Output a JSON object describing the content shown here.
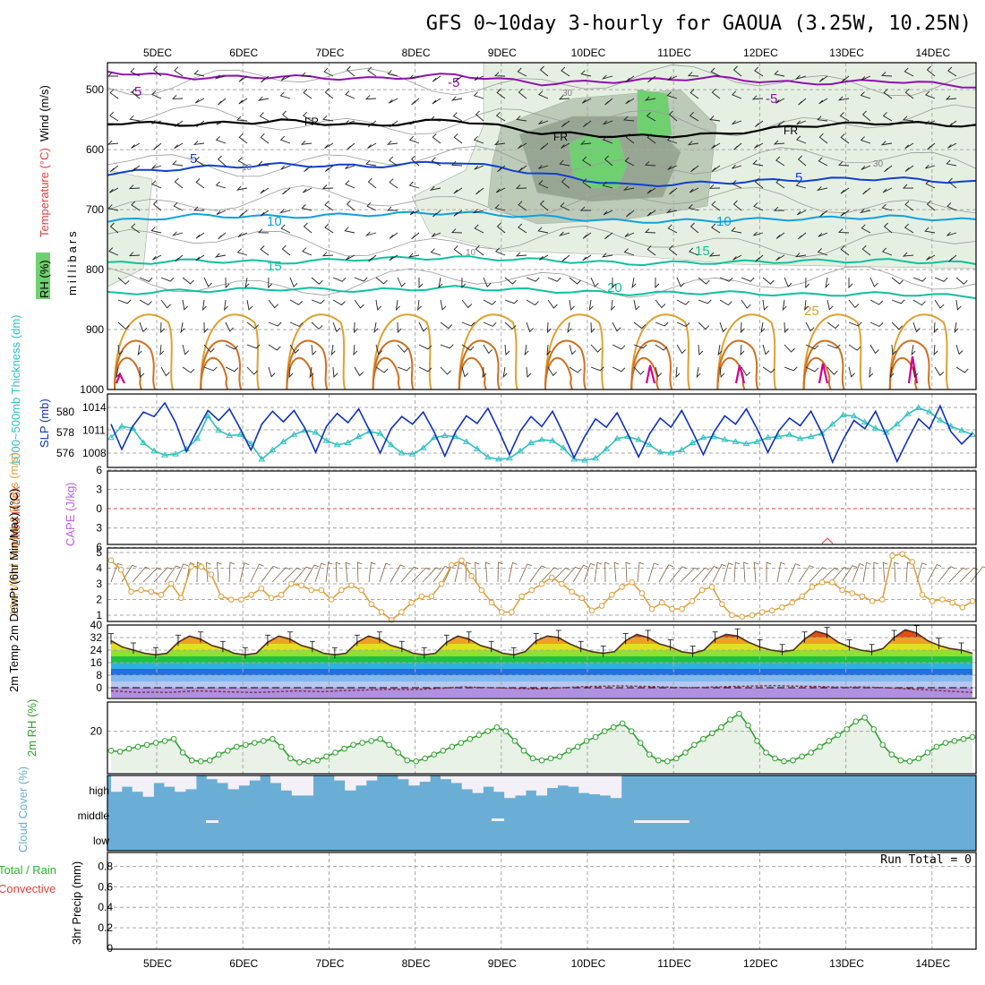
{
  "title": "GFS 0~10day 3-hourly for GAOUA (3.25W, 10.25N)",
  "colors": {
    "rh_light": "#e6f0e2",
    "rh_mid": "#bccab8",
    "rh_dark": "#97a693",
    "rh_green": "#6fd070",
    "purple": "#9010b0",
    "blue": "#1040d0",
    "lightblue": "#10a0e0",
    "teal": "#10c0a0",
    "orange": "#e0a030",
    "darkorange": "#d07020",
    "magenta": "#d00090",
    "slp": "#1030c0",
    "thick": "#30c0c0",
    "li": "#e04040",
    "cape": "#c060e0",
    "wind_speed": "#e0a040",
    "barb": "#806040",
    "temp": "#503020",
    "rh2m": "#30a030",
    "cloud": "#6aaed6",
    "cloud_gap": "#f4f0f8"
  },
  "chart_data": [
    {
      "panel": "upper-air",
      "type": "heatmap",
      "x_dates": [
        "5DEC",
        "6DEC",
        "7DEC",
        "8DEC",
        "9DEC",
        "10DEC",
        "11DEC",
        "12DEC",
        "13DEC",
        "14DEC"
      ],
      "y_ticks": [
        500,
        600,
        700,
        800,
        900,
        1000
      ],
      "ylabel": "millibars",
      "side_labels": [
        "RH (%)",
        "Temperature (°C)",
        "Wind (m/s)"
      ],
      "rh_legend": [
        "30",
        "10",
        "30",
        "10"
      ],
      "isotherm_labels": [
        "-5",
        "-5",
        "-5",
        "FR",
        "FR",
        "FR",
        "5",
        "5",
        "10",
        "10",
        "15",
        "15",
        "20",
        "25"
      ],
      "isotherms": [
        {
          "label": "-5",
          "p": [
            470,
            480,
            478,
            482,
            475,
            490,
            485,
            480,
            490,
            485,
            495
          ]
        },
        {
          "label": "FR",
          "p": [
            555,
            558,
            552,
            560,
            550,
            572,
            578,
            575,
            560,
            555,
            560
          ]
        },
        {
          "label": "5",
          "p": [
            640,
            630,
            625,
            628,
            620,
            640,
            660,
            655,
            650,
            648,
            655
          ]
        },
        {
          "label": "10",
          "p": [
            720,
            710,
            712,
            708,
            705,
            712,
            720,
            718,
            715,
            712,
            718
          ]
        },
        {
          "label": "15",
          "p": [
            790,
            785,
            788,
            782,
            780,
            784,
            790,
            788,
            786,
            785,
            790
          ]
        },
        {
          "label": "20",
          "p": [
            840,
            835,
            832,
            835,
            830,
            835,
            840,
            838,
            842,
            840,
            845
          ]
        }
      ]
    },
    {
      "panel": "slp-thickness",
      "type": "line",
      "ylabel_left": "1000~500mb Thickness (dm)",
      "ylabel_right": "SLP (mb)",
      "left_ticks": [
        576,
        578,
        580
      ],
      "right_ticks": [
        1008,
        1011,
        1014
      ],
      "series": [
        {
          "name": "SLP (mb)",
          "values": [
            1011.8,
            1008.5,
            1011.5,
            1013.4,
            1012.8,
            1014.6,
            1012,
            1008.2,
            1011,
            1013.6,
            1012.3,
            1013.8,
            1011.2,
            1008.4,
            1011.8,
            1013.5,
            1012.1,
            1013.6,
            1011.3,
            1008.1,
            1011.5,
            1013.2,
            1012,
            1013.8,
            1011,
            1008,
            1011.2,
            1012.8,
            1011.8,
            1013.4,
            1010.8,
            1007.6,
            1010.8,
            1012.9,
            1011.9,
            1013.9,
            1011,
            1007.8,
            1010.9,
            1012.8,
            1011.5,
            1013.5,
            1010.6,
            1007.4,
            1010.2,
            1012.5,
            1011.4,
            1013.3,
            1010.5,
            1007.5,
            1010.5,
            1012.6,
            1011.4,
            1013.6,
            1010.8,
            1007.8,
            1010.8,
            1012.9,
            1011.8,
            1013.8,
            1011.2,
            1008.1,
            1010.9,
            1012.6,
            1011.6,
            1013.5,
            1010.7,
            1006.8,
            1009.8,
            1012.3,
            1011.2,
            1013.5,
            1010.3,
            1006.9,
            1009.8,
            1012.5,
            1011.2,
            1014.2,
            1010.8,
            1009.2,
            1010.6
          ]
        },
        {
          "name": "Thickness (dm)",
          "values": [
            577.5,
            578.6,
            578.4,
            577,
            576.2,
            575.8,
            575.9,
            576.4,
            577.4,
            579.6,
            578.2,
            577.7,
            577.8,
            576.9,
            575.4,
            576.3,
            577.1,
            577.8,
            578.2,
            578,
            577.2,
            576.8,
            577,
            577.6,
            578.1,
            577.9,
            576.8,
            576,
            575.9,
            576.5,
            577.5,
            577.7,
            577.6,
            577.1,
            576.4,
            575.6,
            575.4,
            575.5,
            576.2,
            577,
            577.3,
            577.2,
            576.5,
            575.4,
            575.3,
            575.5,
            576.4,
            577.4,
            577.6,
            577.3,
            576.8,
            576.1,
            576,
            576.3,
            577,
            577.5,
            577.6,
            577.3,
            577.1,
            576.9,
            577.1,
            577.5,
            577.6,
            577.8,
            577.4,
            577.6,
            577.9,
            578.8,
            579.7,
            579.6,
            579,
            578.4,
            578,
            578.8,
            579.8,
            580.4,
            580,
            579.2,
            578.6,
            578.2,
            577.8
          ]
        }
      ]
    },
    {
      "panel": "lifted-index-cape",
      "type": "line",
      "ylabel_left": "Lifted Index",
      "ylabel_right": "CAPE (J/kg)",
      "ticks": [
        -6,
        -3,
        0,
        3,
        6
      ],
      "tick_labels": [
        "-6",
        "-3",
        "0",
        "3",
        "6"
      ],
      "lifted_index_reference": 0
    },
    {
      "panel": "wind-10m",
      "type": "line",
      "ylabel": "10m Wind Speed & Barbs (m/s)",
      "ticks": [
        1,
        2,
        3,
        4,
        5
      ],
      "series": [
        {
          "name": "Speed",
          "values": [
            4.5,
            3.9,
            2.5,
            2.6,
            2.5,
            2.3,
            3,
            2.1,
            4.1,
            4.1,
            3.6,
            2.2,
            2,
            2,
            2.3,
            2.7,
            2.1,
            2.3,
            3,
            2.9,
            2.6,
            2.6,
            2,
            2.6,
            2.9,
            2.6,
            1.7,
            1.2,
            0.7,
            1.2,
            1.8,
            2.2,
            2.2,
            3,
            4.2,
            4.5,
            3.5,
            2.6,
            1.8,
            1.2,
            1.2,
            2.2,
            2.6,
            3,
            3.4,
            3,
            2.5,
            2.1,
            1.3,
            1.6,
            2.3,
            2.8,
            3.1,
            2.4,
            1.4,
            1.8,
            1.4,
            1.4,
            1.9,
            2.6,
            2.8,
            1.7,
            1,
            0.9,
            1,
            1.2,
            1.3,
            1.5,
            1.8,
            2.2,
            2.8,
            3.1,
            3.1,
            2.6,
            2.4,
            2.2,
            1.9,
            2,
            4.8,
            4.9,
            4.4,
            2.3,
            1.9,
            2,
            1.8,
            1.5,
            1.9
          ]
        }
      ]
    },
    {
      "panel": "temp-2m",
      "type": "area",
      "ylabel": "2m Temp 2m DewPt (6hr Min/Max) (°C)",
      "ticks": [
        0,
        8,
        16,
        24,
        32,
        40
      ],
      "series": [
        {
          "name": "Temp",
          "values": [
            30,
            26,
            24,
            22,
            21,
            22,
            29,
            33,
            31,
            27,
            25,
            22,
            21,
            22,
            29,
            33,
            31,
            27,
            25,
            22,
            21,
            22,
            29,
            33,
            31,
            27,
            25,
            22,
            21,
            22,
            29,
            33,
            31,
            27,
            25,
            22,
            21,
            23,
            30,
            33,
            32,
            28,
            25,
            23,
            22,
            23,
            30,
            34,
            32,
            28,
            26,
            23,
            22,
            24,
            31,
            34,
            33,
            29,
            26,
            24,
            23,
            24,
            31,
            36,
            34,
            29,
            26,
            24,
            23,
            25,
            32,
            37,
            35,
            30,
            27,
            25,
            24,
            22
          ]
        },
        {
          "name": "DewPt",
          "values": [
            -2,
            -2.5,
            -3,
            -2.8,
            -3,
            -2.5,
            -2,
            -2.2,
            -2.6,
            -2.8,
            -3,
            -2.8,
            -2.5,
            -2,
            -2.2,
            -2.5,
            -2,
            -1.8,
            -1.5,
            -1.2,
            -1,
            -1.2,
            -1,
            -0.5,
            0,
            0.5,
            0.2,
            0,
            -0.2,
            -0.5,
            -0.8,
            -0.5,
            0,
            0.5,
            0.8,
            1,
            1.2,
            1,
            0.8,
            0.5,
            0.2,
            0,
            0.3,
            0.5,
            0.8,
            1,
            1.2,
            1.3,
            1.1,
            0.9,
            0.8,
            0.5,
            0.3,
            0.5,
            0.2,
            0,
            -0.5,
            -1,
            -1.5,
            -2,
            -2.5,
            -3
          ]
        }
      ]
    },
    {
      "panel": "rh-2m",
      "type": "area",
      "ylabel": "2m RH (%)",
      "ticks": [
        20
      ],
      "series": [
        {
          "name": "RH",
          "values": [
            10,
            9.5,
            11,
            12,
            13,
            14,
            15,
            16,
            9,
            5,
            4.5,
            5,
            8,
            10,
            12,
            13,
            14,
            15,
            16,
            12,
            6,
            4,
            4.5,
            5,
            7,
            9,
            11,
            13,
            14,
            15,
            16,
            13,
            9,
            5,
            4.5,
            6,
            8,
            10,
            12,
            14,
            16,
            18,
            20,
            22,
            20,
            15,
            10,
            6,
            5,
            6,
            7,
            10,
            12,
            15,
            17,
            20,
            22,
            24,
            20,
            14,
            8,
            5,
            4.5,
            6,
            9,
            13,
            16,
            19,
            22,
            26,
            29,
            23,
            15,
            9,
            6,
            4.5,
            5,
            7,
            9,
            12,
            15,
            18,
            21,
            25,
            27,
            21,
            13,
            8,
            5,
            4.5,
            6,
            9,
            12,
            14,
            15,
            16,
            17
          ]
        }
      ]
    },
    {
      "panel": "cloud-cover",
      "type": "bar",
      "ylabel": "Cloud Cover (%)",
      "levels": [
        "high",
        "middle",
        "low"
      ],
      "high_cover_values": [
        35,
        55,
        35,
        15,
        70,
        55,
        35,
        45,
        100,
        85,
        70,
        45,
        60,
        80,
        100,
        70,
        40,
        20,
        20,
        100,
        100,
        80,
        40,
        60,
        80,
        100,
        100,
        85,
        60,
        75,
        100,
        85,
        70,
        45,
        30,
        55,
        35,
        10,
        20,
        40,
        20,
        50,
        60,
        55,
        30,
        25,
        20,
        10,
        100,
        100,
        100,
        100,
        100,
        100,
        100,
        100,
        100,
        100,
        100,
        100,
        100,
        100
      ]
    },
    {
      "panel": "precip",
      "type": "bar",
      "ylabel": "3hr Precip (mm)",
      "side_labels": [
        "Total / Rain",
        "Convective"
      ],
      "ticks": [
        0,
        0.2,
        0.4,
        0.6,
        0.8
      ],
      "run_total": "Run Total = 0",
      "values": []
    }
  ]
}
